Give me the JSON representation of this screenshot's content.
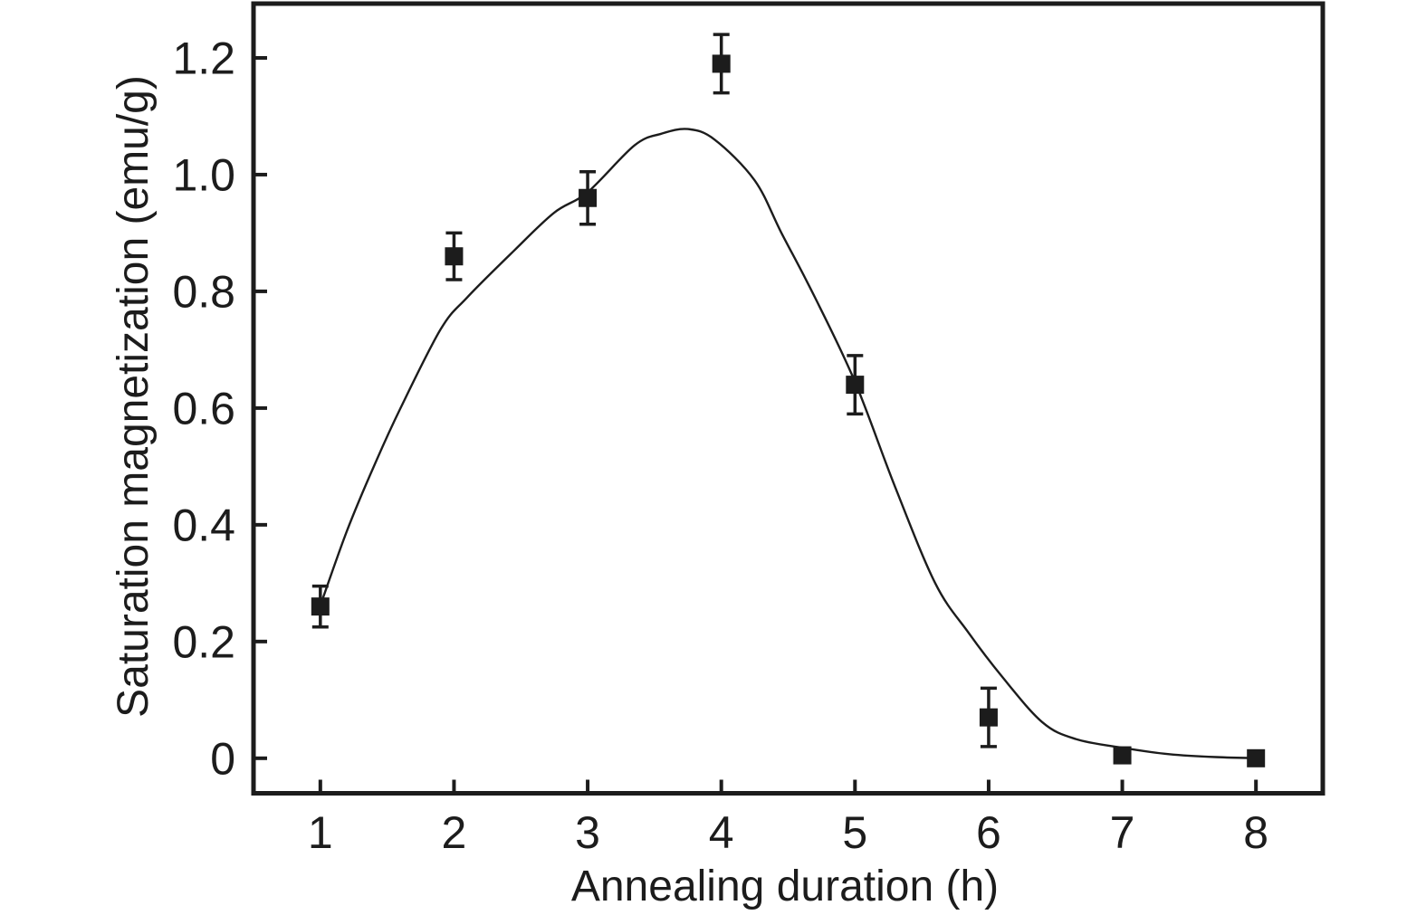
{
  "chart_data": {
    "type": "scatter",
    "title": "",
    "xlabel": "Annealing duration (h)",
    "ylabel": "Saturation magnetization (emu/g)",
    "xlim": [
      0.5,
      8.5
    ],
    "ylim": [
      -0.06,
      1.293
    ],
    "grid": false,
    "legend": null,
    "xticks": {
      "values": [
        1,
        2,
        3,
        4,
        5,
        6,
        7,
        8
      ],
      "labels": [
        "1",
        "2",
        "3",
        "4",
        "5",
        "6",
        "7",
        "8"
      ]
    },
    "yticks": {
      "values": [
        0,
        0.2,
        0.4,
        0.6,
        0.8,
        1.0,
        1.2
      ],
      "labels": [
        "0",
        "0.2",
        "0.4",
        "0.6",
        "0.8",
        "1.0",
        "1.2"
      ]
    },
    "series": [
      {
        "name": "saturation-magnetization-measured",
        "marker": "filled-square",
        "x": [
          1,
          2,
          3,
          4,
          5,
          6,
          7,
          8
        ],
        "y": [
          0.26,
          0.86,
          0.96,
          1.19,
          0.64,
          0.07,
          0.005,
          0.0
        ],
        "yerr": [
          0.035,
          0.04,
          0.045,
          0.05,
          0.05,
          0.05,
          0,
          0
        ]
      }
    ],
    "fit_curve": {
      "name": "fitted-trend",
      "style": "solid-thin",
      "x": [
        1.02,
        1.2,
        1.4,
        1.6,
        1.9,
        2.1,
        2.45,
        2.75,
        3.0,
        3.35,
        3.55,
        3.75,
        3.95,
        4.25,
        4.45,
        4.7,
        5.0,
        5.3,
        5.6,
        5.85,
        6.1,
        6.4,
        6.65,
        7.0,
        7.35,
        7.7,
        8.05
      ],
      "y": [
        0.275,
        0.39,
        0.5,
        0.6,
        0.735,
        0.79,
        0.87,
        0.935,
        0.97,
        1.05,
        1.07,
        1.078,
        1.06,
        0.99,
        0.9,
        0.79,
        0.645,
        0.465,
        0.3,
        0.215,
        0.14,
        0.062,
        0.033,
        0.018,
        0.007,
        0.002,
        0.0
      ]
    },
    "colors": {
      "ink": "#1c1c1c",
      "background": "#ffffff"
    }
  }
}
